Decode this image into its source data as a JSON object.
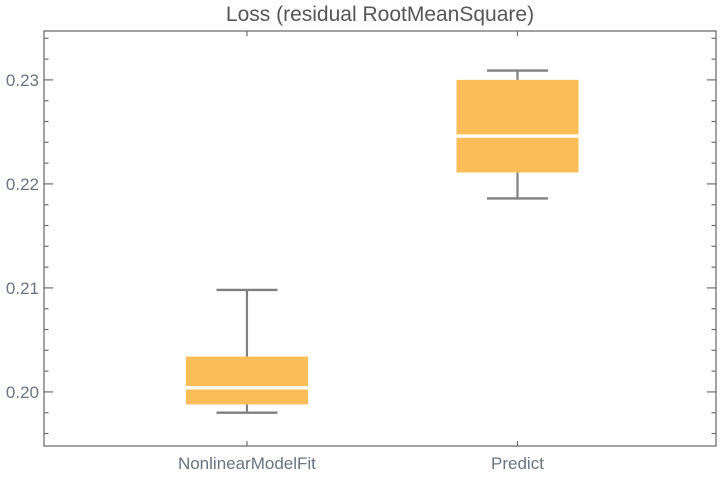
{
  "chart_data": {
    "type": "boxwhisker",
    "title": "Loss (residual RootMeanSquare)",
    "categories": [
      "NonlinearModelFit",
      "Predict"
    ],
    "series": [
      {
        "name": "NonlinearModelFit",
        "whisker_low": 0.198,
        "q1": 0.1988,
        "median": 0.2004,
        "q3": 0.2034,
        "whisker_high": 0.2098
      },
      {
        "name": "Predict",
        "whisker_low": 0.2186,
        "q1": 0.2211,
        "median": 0.2246,
        "q3": 0.23,
        "whisker_high": 0.2309
      }
    ],
    "y_axis": {
      "range": [
        0.1948,
        0.2347
      ],
      "major_ticks": [
        0.2,
        0.21,
        0.22,
        0.23
      ],
      "major_tick_labels": [
        "0.20",
        "0.21",
        "0.22",
        "0.23"
      ],
      "minor_tick_step": 0.002,
      "grid": "off",
      "ticks_position": "inward-left-and-right"
    },
    "colors": {
      "box_fill": "#FABD57",
      "median_line": "#FFFFFF",
      "whisker": "#808080",
      "frame": "#6F6F6F",
      "tick_label": "#697480",
      "title": "#565656",
      "background": "#FFFFFF"
    }
  }
}
